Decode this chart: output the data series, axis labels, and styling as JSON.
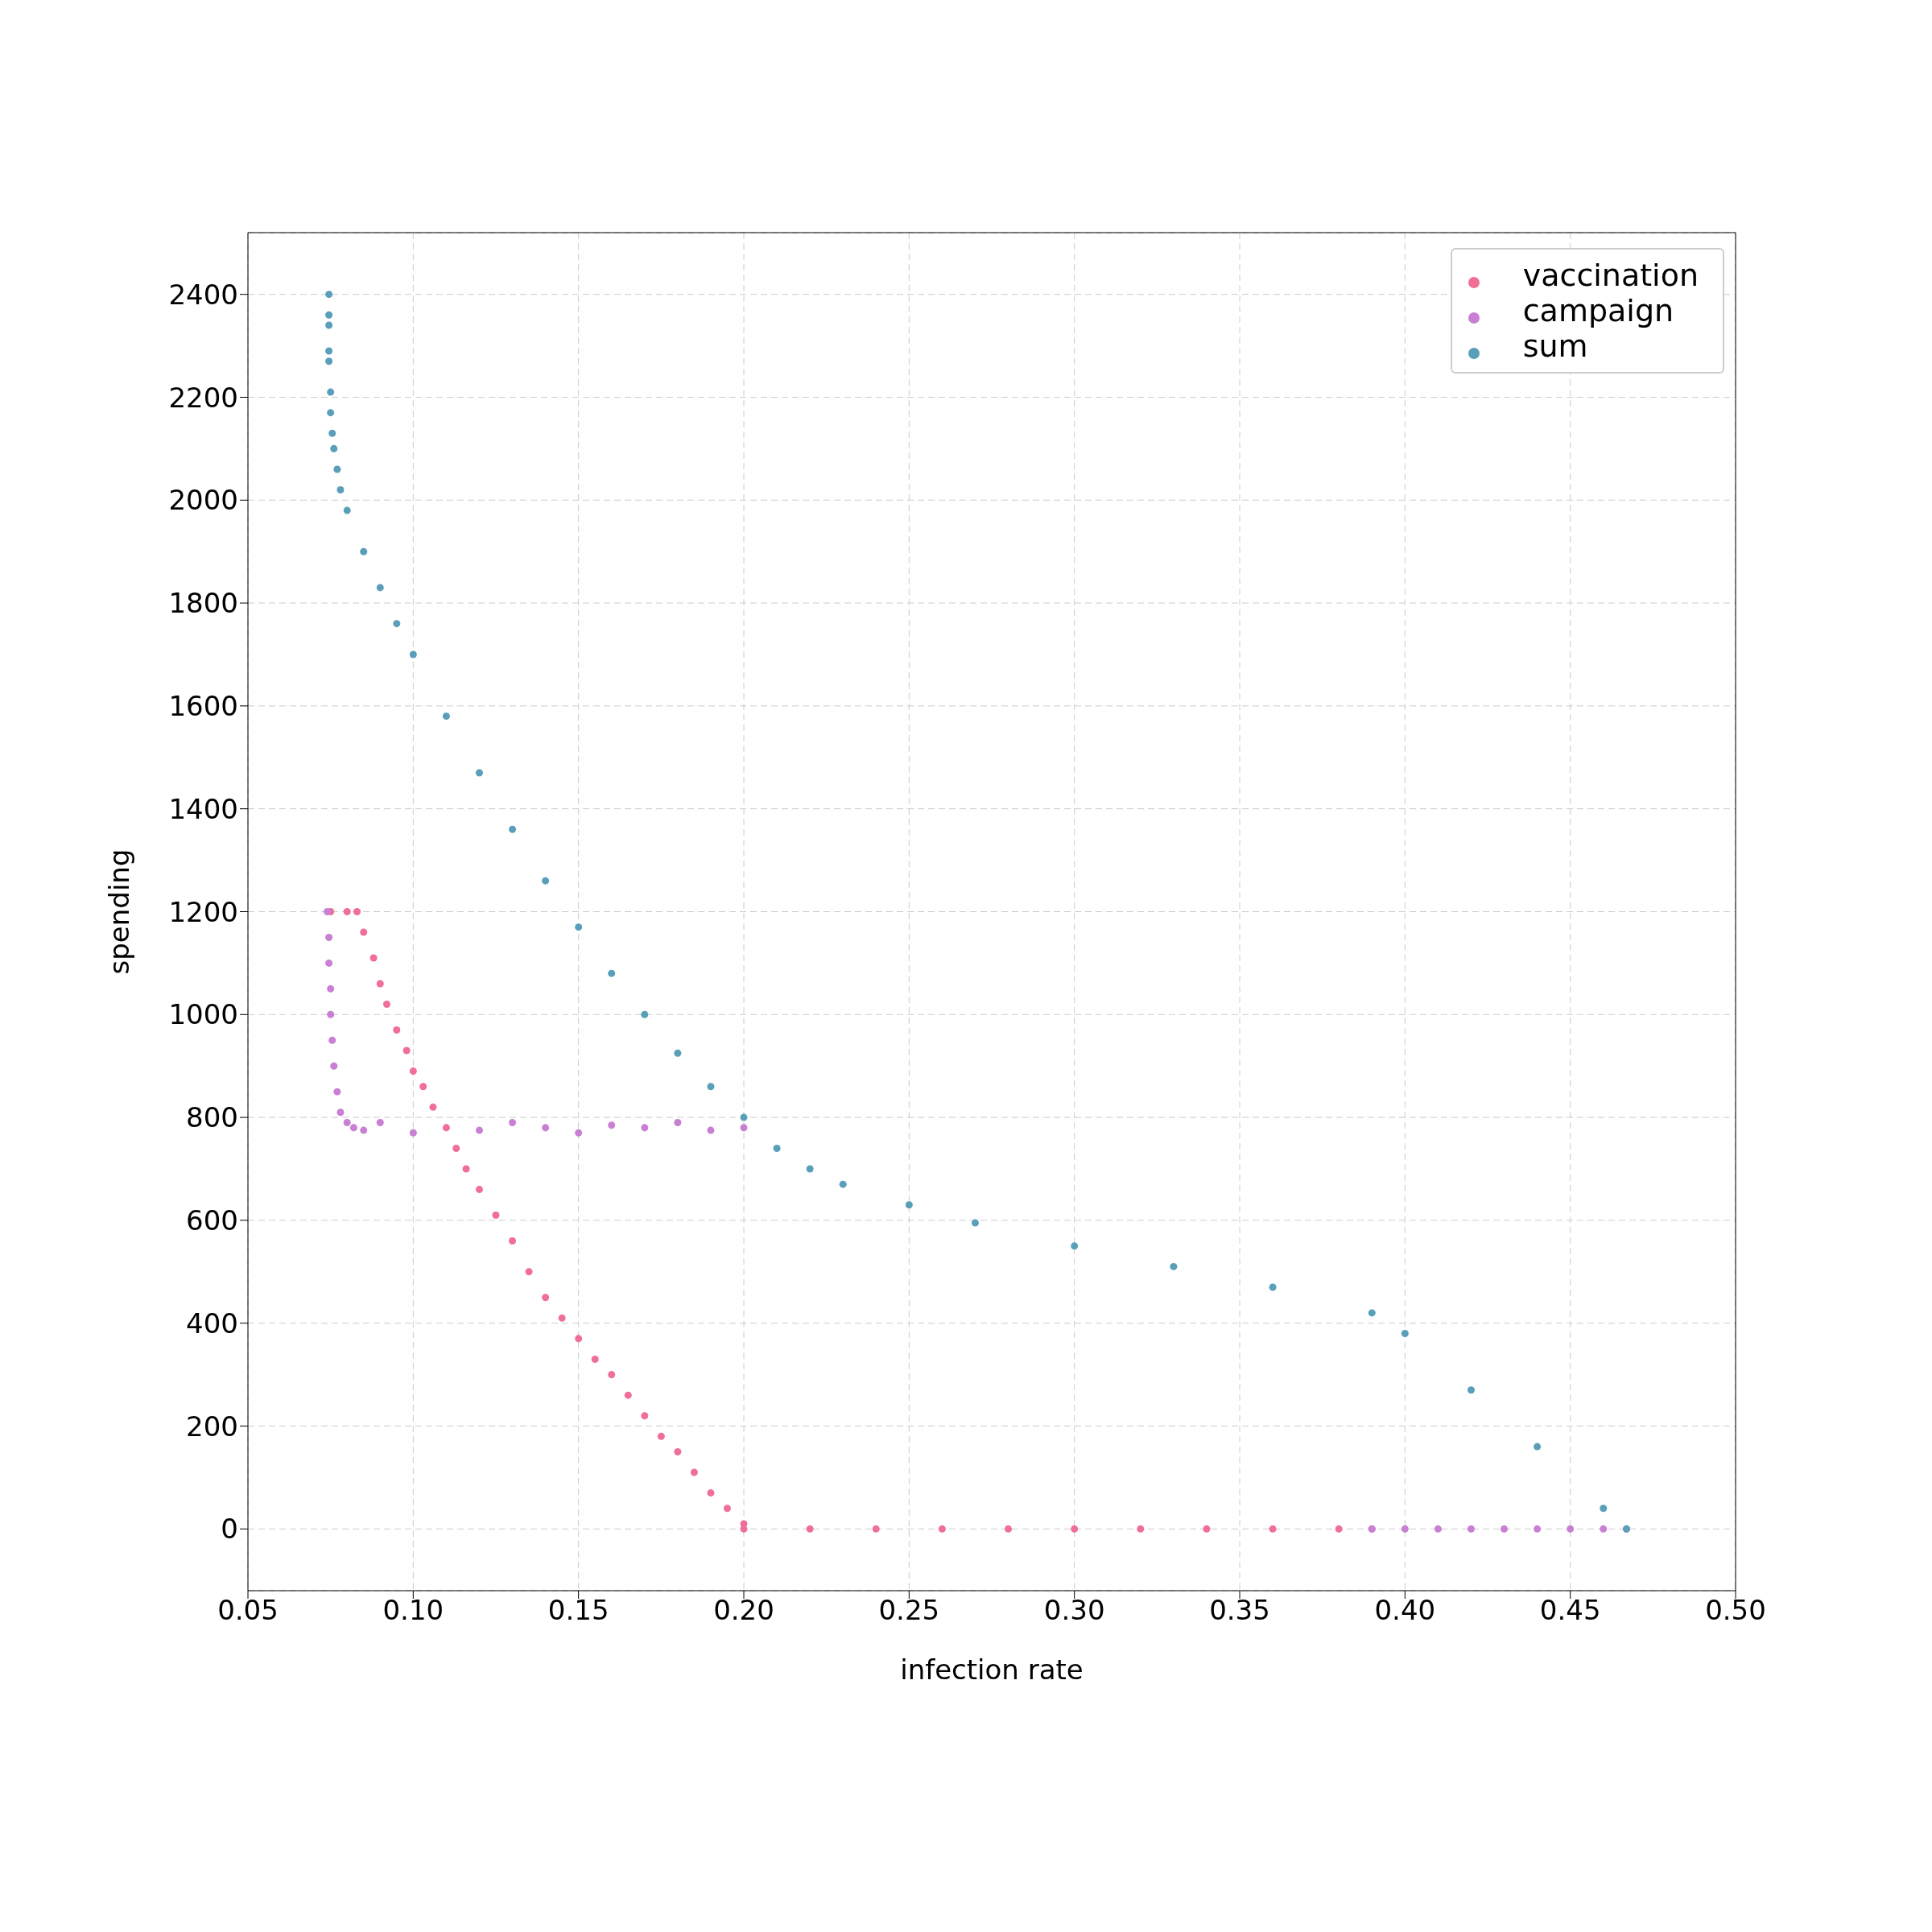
{
  "chart_data": {
    "type": "scatter",
    "xlabel": "infection rate",
    "ylabel": "spending",
    "xlim": [
      0.05,
      0.5
    ],
    "xticks": [
      {
        "value": 0.05,
        "label": "0.05"
      },
      {
        "value": 0.1,
        "label": "0.10"
      },
      {
        "value": 0.15,
        "label": "0.15"
      },
      {
        "value": 0.2,
        "label": "0.20"
      },
      {
        "value": 0.25,
        "label": "0.25"
      },
      {
        "value": 0.3,
        "label": "0.30"
      },
      {
        "value": 0.35,
        "label": "0.35"
      },
      {
        "value": 0.4,
        "label": "0.40"
      },
      {
        "value": 0.45,
        "label": "0.45"
      },
      {
        "value": 0.5,
        "label": "0.50"
      }
    ],
    "ylim": [
      -120,
      2520
    ],
    "yticks": [
      0,
      200,
      400,
      600,
      800,
      1000,
      1200,
      1400,
      1600,
      1800,
      2000,
      2200,
      2400
    ],
    "grid": true,
    "legend": "top right",
    "marker": "circle",
    "series": [
      {
        "name": "vaccination",
        "color": "#ef6f97",
        "x": [
          0.075,
          0.08,
          0.083,
          0.085,
          0.088,
          0.09,
          0.092,
          0.095,
          0.098,
          0.1,
          0.103,
          0.106,
          0.11,
          0.113,
          0.116,
          0.12,
          0.125,
          0.13,
          0.135,
          0.14,
          0.145,
          0.15,
          0.155,
          0.16,
          0.165,
          0.17,
          0.175,
          0.18,
          0.185,
          0.19,
          0.195,
          0.2,
          0.2,
          0.22,
          0.24,
          0.26,
          0.28,
          0.3,
          0.32,
          0.34,
          0.36,
          0.38,
          0.39
        ],
        "values": [
          1200,
          1200,
          1200,
          1160,
          1110,
          1060,
          1020,
          970,
          930,
          890,
          860,
          820,
          780,
          740,
          700,
          660,
          610,
          560,
          500,
          450,
          410,
          370,
          330,
          300,
          260,
          220,
          180,
          150,
          110,
          70,
          40,
          10,
          0,
          0,
          0,
          0,
          0,
          0,
          0,
          0,
          0,
          0,
          0
        ]
      },
      {
        "name": "campaign",
        "color": "#c97fd4",
        "x": [
          0.074,
          0.0745,
          0.0745,
          0.075,
          0.075,
          0.0755,
          0.076,
          0.077,
          0.078,
          0.08,
          0.082,
          0.085,
          0.09,
          0.1,
          0.12,
          0.13,
          0.14,
          0.15,
          0.16,
          0.17,
          0.18,
          0.19,
          0.2,
          0.39,
          0.4,
          0.41,
          0.42,
          0.43,
          0.44,
          0.45,
          0.46,
          0.467
        ],
        "values": [
          1200,
          1150,
          1100,
          1050,
          1000,
          950,
          900,
          850,
          810,
          790,
          780,
          775,
          790,
          770,
          775,
          790,
          780,
          770,
          785,
          780,
          790,
          775,
          780,
          0,
          0,
          0,
          0,
          0,
          0,
          0,
          0,
          0
        ]
      },
      {
        "name": "sum",
        "color": "#5a9fba",
        "x": [
          0.0745,
          0.0745,
          0.0745,
          0.0745,
          0.0745,
          0.075,
          0.075,
          0.0755,
          0.076,
          0.077,
          0.078,
          0.08,
          0.085,
          0.09,
          0.095,
          0.1,
          0.11,
          0.12,
          0.13,
          0.14,
          0.15,
          0.16,
          0.17,
          0.18,
          0.19,
          0.2,
          0.21,
          0.22,
          0.23,
          0.25,
          0.27,
          0.3,
          0.33,
          0.36,
          0.39,
          0.4,
          0.42,
          0.44,
          0.46,
          0.467
        ],
        "values": [
          2400,
          2360,
          2340,
          2290,
          2270,
          2210,
          2170,
          2130,
          2100,
          2060,
          2020,
          1980,
          1900,
          1830,
          1760,
          1700,
          1580,
          1470,
          1360,
          1260,
          1170,
          1080,
          1000,
          925,
          860,
          800,
          740,
          700,
          670,
          630,
          595,
          550,
          510,
          470,
          420,
          380,
          270,
          160,
          40,
          0
        ]
      }
    ]
  }
}
